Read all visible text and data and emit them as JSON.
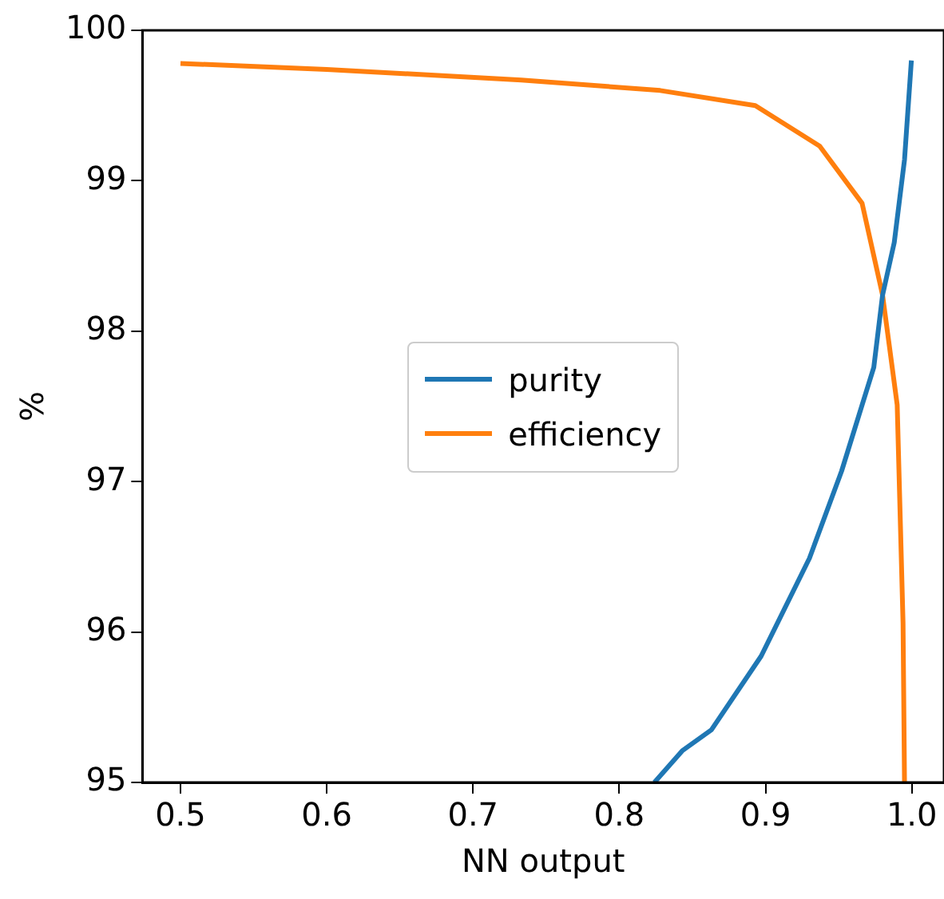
{
  "chart_data": {
    "type": "line",
    "xlabel": "NN output",
    "ylabel": "%",
    "xlim": [
      0.474,
      1.022
    ],
    "ylim": [
      95,
      100
    ],
    "xticks": [
      {
        "value": 0.5,
        "label": "0.5"
      },
      {
        "value": 0.6,
        "label": "0.6"
      },
      {
        "value": 0.7,
        "label": "0.7"
      },
      {
        "value": 0.8,
        "label": "0.8"
      },
      {
        "value": 0.9,
        "label": "0.9"
      },
      {
        "value": 1.0,
        "label": "1.0"
      }
    ],
    "yticks": [
      95,
      96,
      97,
      98,
      99,
      100
    ],
    "grid": false,
    "legend": "center",
    "marker": "none",
    "line_style": "solid",
    "series": [
      {
        "name": "purity",
        "color": "#1f77b4",
        "x": [
          0.824,
          0.843,
          0.863,
          0.897,
          0.93,
          0.952,
          0.974,
          0.98,
          0.988,
          0.995,
          0.9997
        ],
        "values": [
          95.0,
          95.21,
          95.35,
          95.84,
          96.49,
          97.07,
          97.76,
          98.24,
          98.59,
          99.14,
          99.8
        ]
      },
      {
        "name": "efficiency",
        "color": "#ff7f0e",
        "x": [
          0.5,
          0.6,
          0.733,
          0.828,
          0.893,
          0.937,
          0.966,
          0.98,
          0.99,
          0.994,
          0.995
        ],
        "values": [
          99.78,
          99.74,
          99.67,
          99.6,
          99.5,
          99.23,
          98.85,
          98.24,
          97.51,
          96.06,
          95.0
        ]
      }
    ]
  }
}
